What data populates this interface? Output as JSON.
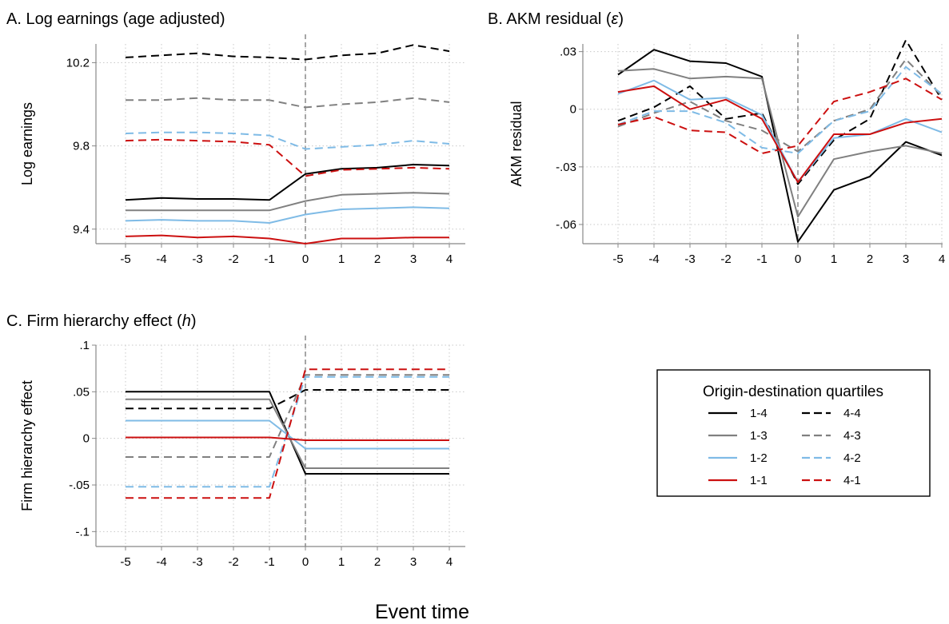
{
  "figure": {
    "xlabel": "Event time"
  },
  "legend": {
    "title": "Origin-destination quartiles",
    "entries": [
      {
        "label": "1-4",
        "color": "#000000",
        "dash": "solid"
      },
      {
        "label": "4-4",
        "color": "#000000",
        "dash": "dashed"
      },
      {
        "label": "1-3",
        "color": "#808080",
        "dash": "solid"
      },
      {
        "label": "4-3",
        "color": "#808080",
        "dash": "dashed"
      },
      {
        "label": "1-2",
        "color": "#7fbbe6",
        "dash": "solid"
      },
      {
        "label": "4-2",
        "color": "#7fbbe6",
        "dash": "dashed"
      },
      {
        "label": "1-1",
        "color": "#cc1010",
        "dash": "solid"
      },
      {
        "label": "4-1",
        "color": "#cc1010",
        "dash": "dashed"
      }
    ]
  },
  "chart_data": [
    {
      "type": "line",
      "panel": "A",
      "title": "A. Log earnings (age adjusted)",
      "xlabel": "",
      "ylabel": "Log earnings",
      "x": [
        -5,
        -4,
        -3,
        -2,
        -1,
        0,
        1,
        2,
        3,
        4
      ],
      "xlim": [
        -5.8,
        4
      ],
      "ylim": [
        9.33,
        10.29
      ],
      "yticks": [
        9.4,
        9.8,
        10.2
      ],
      "ytick_labels": [
        "9.4",
        "9.8",
        "10.2"
      ],
      "xticks": [
        -5,
        -4,
        -3,
        -2,
        -1,
        0,
        1,
        2,
        3,
        4
      ],
      "xtick_labels": [
        "-5",
        "-4",
        "-3",
        "-2",
        "-1",
        "0",
        "1",
        "2",
        "3",
        "4"
      ],
      "grid": true,
      "event_line": 0,
      "series": [
        {
          "name": "1-4",
          "color": "#000000",
          "dash": "solid",
          "values": [
            9.54,
            9.55,
            9.545,
            9.545,
            9.54,
            9.665,
            9.69,
            9.695,
            9.71,
            9.705
          ]
        },
        {
          "name": "4-4",
          "color": "#000000",
          "dash": "dashed",
          "values": [
            10.225,
            10.235,
            10.245,
            10.23,
            10.225,
            10.215,
            10.235,
            10.245,
            10.285,
            10.255
          ]
        },
        {
          "name": "1-3",
          "color": "#808080",
          "dash": "solid",
          "values": [
            9.49,
            9.49,
            9.49,
            9.49,
            9.49,
            9.535,
            9.565,
            9.57,
            9.575,
            9.57
          ]
        },
        {
          "name": "4-3",
          "color": "#808080",
          "dash": "dashed",
          "values": [
            10.02,
            10.02,
            10.03,
            10.02,
            10.02,
            9.985,
            10.0,
            10.01,
            10.03,
            10.01
          ]
        },
        {
          "name": "1-2",
          "color": "#7fbbe6",
          "dash": "solid",
          "values": [
            9.44,
            9.445,
            9.44,
            9.44,
            9.43,
            9.47,
            9.495,
            9.5,
            9.505,
            9.5
          ]
        },
        {
          "name": "4-2",
          "color": "#7fbbe6",
          "dash": "dashed",
          "values": [
            9.86,
            9.865,
            9.865,
            9.86,
            9.85,
            9.785,
            9.795,
            9.805,
            9.825,
            9.81
          ]
        },
        {
          "name": "1-1",
          "color": "#cc1010",
          "dash": "solid",
          "values": [
            9.365,
            9.37,
            9.36,
            9.365,
            9.355,
            9.33,
            9.355,
            9.355,
            9.36,
            9.36
          ]
        },
        {
          "name": "4-1",
          "color": "#cc1010",
          "dash": "dashed",
          "values": [
            9.825,
            9.83,
            9.825,
            9.82,
            9.805,
            9.655,
            9.685,
            9.69,
            9.695,
            9.69
          ]
        }
      ]
    },
    {
      "type": "line",
      "panel": "B",
      "title_prefix": "B. AKM residual (",
      "title_symbol": "ε",
      "title_suffix": ")",
      "xlabel": "",
      "ylabel": "AKM residual",
      "x": [
        -5,
        -4,
        -3,
        -2,
        -1,
        0,
        1,
        2,
        3,
        4
      ],
      "xlim": [
        -5.8,
        4
      ],
      "ylim": [
        -0.07,
        0.034
      ],
      "yticks": [
        -0.06,
        -0.03,
        0,
        0.03
      ],
      "ytick_labels": [
        "-.06",
        "-.03",
        "0",
        ".03"
      ],
      "xticks": [
        -5,
        -4,
        -3,
        -2,
        -1,
        0,
        1,
        2,
        3,
        4
      ],
      "xtick_labels": [
        "-5",
        "-4",
        "-3",
        "-2",
        "-1",
        "0",
        "1",
        "2",
        "3",
        "4"
      ],
      "grid": true,
      "event_line": 0,
      "series": [
        {
          "name": "1-4",
          "color": "#000000",
          "dash": "solid",
          "values": [
            0.018,
            0.031,
            0.025,
            0.024,
            0.017,
            -0.069,
            -0.042,
            -0.035,
            -0.017,
            -0.024
          ]
        },
        {
          "name": "4-4",
          "color": "#000000",
          "dash": "dashed",
          "values": [
            -0.006,
            0.001,
            0.012,
            -0.005,
            -0.002,
            -0.039,
            -0.016,
            -0.005,
            0.036,
            0.005
          ]
        },
        {
          "name": "1-3",
          "color": "#808080",
          "dash": "solid",
          "values": [
            0.02,
            0.021,
            0.016,
            0.017,
            0.016,
            -0.056,
            -0.026,
            -0.022,
            -0.019,
            -0.023
          ]
        },
        {
          "name": "4-3",
          "color": "#808080",
          "dash": "dashed",
          "values": [
            -0.009,
            -0.002,
            0.004,
            -0.006,
            -0.011,
            -0.022,
            -0.006,
            0.0,
            0.026,
            0.007
          ]
        },
        {
          "name": "1-2",
          "color": "#7fbbe6",
          "dash": "solid",
          "values": [
            0.008,
            0.015,
            0.005,
            0.006,
            -0.003,
            -0.038,
            -0.015,
            -0.013,
            -0.005,
            -0.012
          ]
        },
        {
          "name": "4-2",
          "color": "#7fbbe6",
          "dash": "dashed",
          "values": [
            -0.008,
            -0.001,
            -0.001,
            -0.007,
            -0.02,
            -0.023,
            -0.006,
            -0.001,
            0.022,
            0.008
          ]
        },
        {
          "name": "1-1",
          "color": "#cc1010",
          "dash": "solid",
          "values": [
            0.009,
            0.012,
            0.0,
            0.005,
            -0.005,
            -0.038,
            -0.013,
            -0.013,
            -0.007,
            -0.005
          ]
        },
        {
          "name": "4-1",
          "color": "#cc1010",
          "dash": "dashed",
          "values": [
            -0.008,
            -0.004,
            -0.011,
            -0.012,
            -0.023,
            -0.019,
            0.004,
            0.009,
            0.016,
            0.005
          ]
        }
      ]
    },
    {
      "type": "line",
      "panel": "C",
      "title_prefix": "C. Firm hierarchy effect (",
      "title_symbol": "h",
      "title_suffix": ")",
      "xlabel": "",
      "ylabel": "Firm hierarchy effect",
      "x": [
        -5,
        -4,
        -3,
        -2,
        -1,
        0,
        1,
        2,
        3,
        4
      ],
      "xlim": [
        -5.8,
        4
      ],
      "ylim": [
        -0.116,
        0.1
      ],
      "yticks": [
        -0.1,
        -0.05,
        0,
        0.05,
        0.1
      ],
      "ytick_labels": [
        "-.1",
        "-.05",
        "0",
        ".05",
        ".1"
      ],
      "xticks": [
        -5,
        -4,
        -3,
        -2,
        -1,
        0,
        1,
        2,
        3,
        4
      ],
      "xtick_labels": [
        "-5",
        "-4",
        "-3",
        "-2",
        "-1",
        "0",
        "1",
        "2",
        "3",
        "4"
      ],
      "grid": true,
      "event_line": 0,
      "series": [
        {
          "name": "1-4",
          "color": "#000000",
          "dash": "solid",
          "values": [
            0.05,
            0.05,
            0.05,
            0.05,
            0.05,
            -0.038,
            -0.038,
            -0.038,
            -0.038,
            -0.038
          ]
        },
        {
          "name": "4-4",
          "color": "#000000",
          "dash": "dashed",
          "values": [
            0.032,
            0.032,
            0.032,
            0.032,
            0.032,
            0.052,
            0.052,
            0.052,
            0.052,
            0.052
          ]
        },
        {
          "name": "1-3",
          "color": "#808080",
          "dash": "solid",
          "values": [
            0.042,
            0.042,
            0.042,
            0.042,
            0.042,
            -0.032,
            -0.032,
            -0.032,
            -0.032,
            -0.032
          ]
        },
        {
          "name": "4-3",
          "color": "#808080",
          "dash": "dashed",
          "values": [
            -0.02,
            -0.02,
            -0.02,
            -0.02,
            -0.02,
            0.068,
            0.068,
            0.068,
            0.068,
            0.068
          ]
        },
        {
          "name": "1-2",
          "color": "#7fbbe6",
          "dash": "solid",
          "values": [
            0.019,
            0.019,
            0.019,
            0.019,
            0.019,
            -0.011,
            -0.011,
            -0.011,
            -0.011,
            -0.011
          ]
        },
        {
          "name": "4-2",
          "color": "#7fbbe6",
          "dash": "dashed",
          "values": [
            -0.052,
            -0.052,
            -0.052,
            -0.052,
            -0.052,
            0.066,
            0.066,
            0.066,
            0.066,
            0.066
          ]
        },
        {
          "name": "1-1",
          "color": "#cc1010",
          "dash": "solid",
          "values": [
            0.001,
            0.001,
            0.001,
            0.001,
            0.001,
            -0.002,
            -0.002,
            -0.002,
            -0.002,
            -0.002
          ]
        },
        {
          "name": "4-1",
          "color": "#cc1010",
          "dash": "dashed",
          "values": [
            -0.064,
            -0.064,
            -0.064,
            -0.064,
            -0.064,
            0.074,
            0.074,
            0.074,
            0.074,
            0.074
          ]
        }
      ]
    }
  ]
}
